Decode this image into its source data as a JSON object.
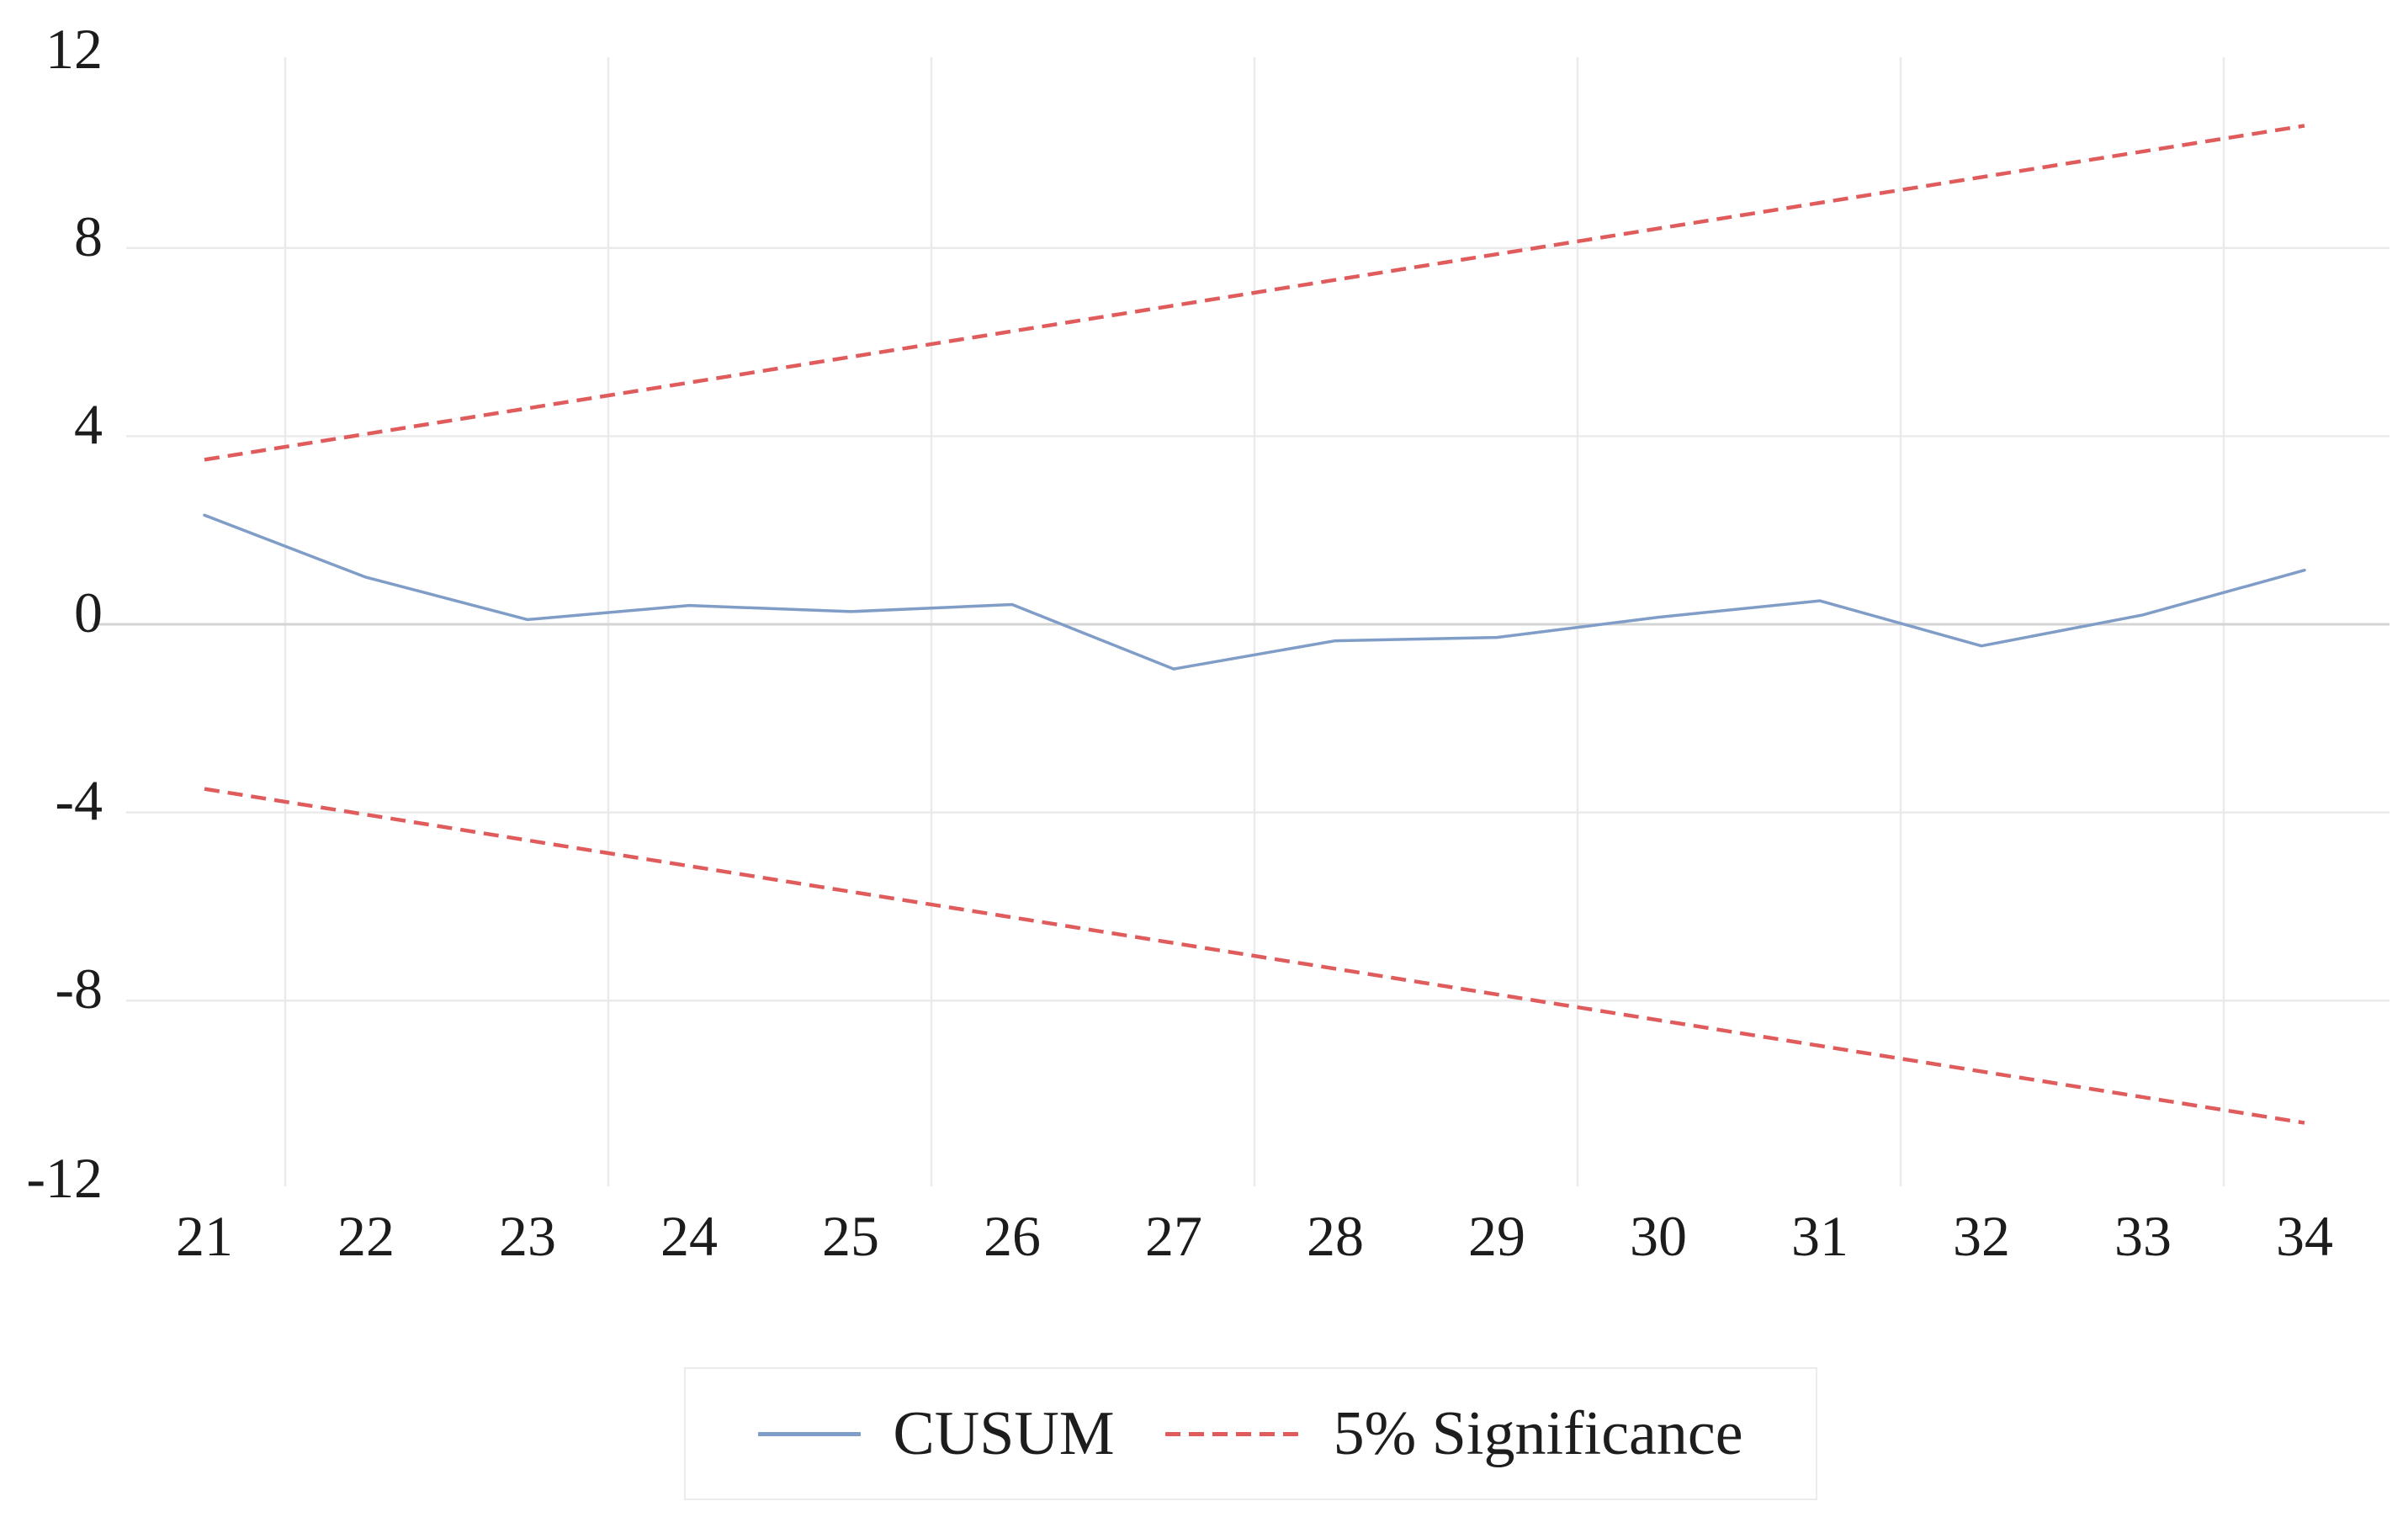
{
  "chart_data": {
    "type": "line",
    "title": "",
    "xlabel": "",
    "ylabel": "",
    "x": [
      21,
      22,
      23,
      24,
      25,
      26,
      27,
      28,
      29,
      30,
      31,
      32,
      33,
      34
    ],
    "series": [
      {
        "name": "CUSUM",
        "style": "solid",
        "color": "#7f9dc7",
        "values": [
          2.32,
          1.0,
          0.1,
          0.4,
          0.27,
          0.42,
          -0.95,
          -0.35,
          -0.28,
          0.15,
          0.5,
          -0.46,
          0.2,
          1.15
        ]
      },
      {
        "name": "5% Significance (upper bound)",
        "style": "dashed",
        "color": "#e05c5c",
        "endpoints": [
          [
            21,
            3.5
          ],
          [
            34,
            10.6
          ]
        ]
      },
      {
        "name": "5% Significance (lower bound)",
        "style": "dashed",
        "color": "#e05c5c",
        "endpoints": [
          [
            21,
            -3.5
          ],
          [
            34,
            -10.6
          ]
        ]
      }
    ],
    "x_tick_labels": [
      "21",
      "22",
      "23",
      "24",
      "25",
      "26",
      "27",
      "28",
      "29",
      "30",
      "31",
      "32",
      "33",
      "34"
    ],
    "y_tick_labels": [
      "12",
      "8",
      "4",
      "0",
      "-4",
      "-8",
      "-12"
    ],
    "y_tick_values": [
      12,
      8,
      4,
      0,
      -4,
      -8,
      -12
    ],
    "ylim": [
      -12,
      12
    ],
    "xlim": [
      20.5,
      34.6
    ],
    "grid": {
      "vertical_at_x": [
        21.5,
        23.5,
        25.5,
        27.5,
        29.5,
        31.5,
        33.5
      ],
      "horizontal_at_y": [
        8,
        4,
        -4,
        -8
      ],
      "zero_line": true,
      "gridline_color": "#ebebeb",
      "zero_line_color": "#d4d4d4"
    },
    "legend": {
      "position": "bottom-center",
      "entries": [
        {
          "label": "CUSUM",
          "style": "solid",
          "color": "#7f9dc7"
        },
        {
          "label": "5% Significance",
          "style": "dashed",
          "color": "#e05c5c"
        }
      ]
    }
  }
}
